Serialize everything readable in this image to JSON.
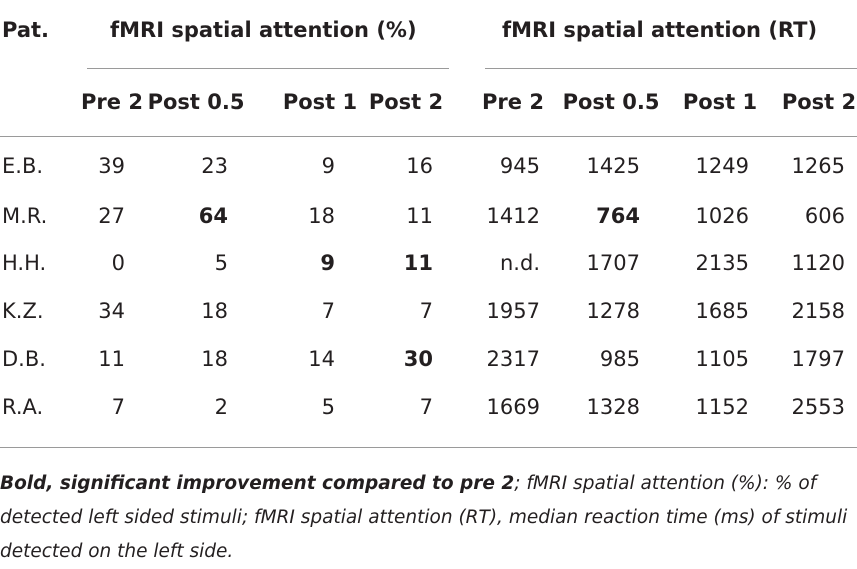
{
  "table": {
    "pat_label": "Pat.",
    "group_pct": "fMRI spatial attention (%)",
    "group_rt": "fMRI spatial attention (RT)",
    "subheaders": [
      "Pre 2",
      "Post 0.5",
      "Post 1",
      "Post 2",
      "Pre 2",
      "Post 0.5",
      "Post 1",
      "Post 2"
    ],
    "rows": [
      {
        "pat": "E.B.",
        "cells": [
          {
            "v": "39",
            "b": false
          },
          {
            "v": "23",
            "b": false
          },
          {
            "v": "9",
            "b": false
          },
          {
            "v": "16",
            "b": false
          },
          {
            "v": "945",
            "b": false
          },
          {
            "v": "1425",
            "b": false
          },
          {
            "v": "1249",
            "b": false
          },
          {
            "v": "1265",
            "b": false
          }
        ]
      },
      {
        "pat": "M.R.",
        "cells": [
          {
            "v": "27",
            "b": false
          },
          {
            "v": "64",
            "b": true
          },
          {
            "v": "18",
            "b": false
          },
          {
            "v": "11",
            "b": false
          },
          {
            "v": "1412",
            "b": false
          },
          {
            "v": "764",
            "b": true
          },
          {
            "v": "1026",
            "b": false
          },
          {
            "v": "606",
            "b": false
          }
        ]
      },
      {
        "pat": "H.H.",
        "cells": [
          {
            "v": "0",
            "b": false
          },
          {
            "v": "5",
            "b": false
          },
          {
            "v": "9",
            "b": true
          },
          {
            "v": "11",
            "b": true
          },
          {
            "v": "n.d.",
            "b": false
          },
          {
            "v": "1707",
            "b": false
          },
          {
            "v": "2135",
            "b": false
          },
          {
            "v": "1120",
            "b": false
          }
        ]
      },
      {
        "pat": "K.Z.",
        "cells": [
          {
            "v": "34",
            "b": false
          },
          {
            "v": "18",
            "b": false
          },
          {
            "v": "7",
            "b": false
          },
          {
            "v": "7",
            "b": false
          },
          {
            "v": "1957",
            "b": false
          },
          {
            "v": "1278",
            "b": false
          },
          {
            "v": "1685",
            "b": false
          },
          {
            "v": "2158",
            "b": false
          }
        ]
      },
      {
        "pat": "D.B.",
        "cells": [
          {
            "v": "11",
            "b": false
          },
          {
            "v": "18",
            "b": false
          },
          {
            "v": "14",
            "b": false
          },
          {
            "v": "30",
            "b": true
          },
          {
            "v": "2317",
            "b": false
          },
          {
            "v": "985",
            "b": false
          },
          {
            "v": "1105",
            "b": false
          },
          {
            "v": "1797",
            "b": false
          }
        ]
      },
      {
        "pat": "R.A.",
        "cells": [
          {
            "v": "7",
            "b": false
          },
          {
            "v": "2",
            "b": false
          },
          {
            "v": "5",
            "b": false
          },
          {
            "v": "7",
            "b": false
          },
          {
            "v": "1669",
            "b": false
          },
          {
            "v": "1328",
            "b": false
          },
          {
            "v": "1152",
            "b": false
          },
          {
            "v": "2553",
            "b": false
          }
        ]
      }
    ]
  },
  "caption": {
    "bold_part": "Bold, significant improvement compared to pre 2",
    "rest": "; fMRI spatial attention (%): % of detected left sided stimuli; fMRI spatial attention (RT), median reaction time (ms) of stimuli detected on the left side."
  }
}
